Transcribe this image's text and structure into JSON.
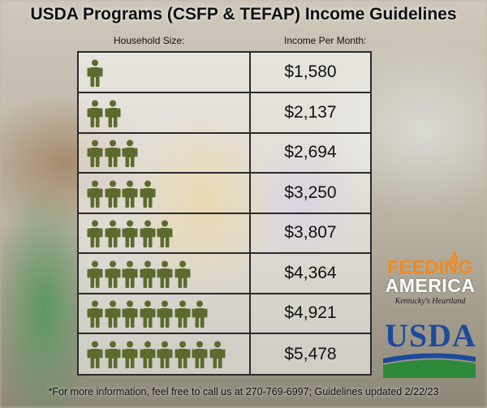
{
  "title": "USDA Programs (CSFP & TEFAP) Income Guidelines",
  "columns": {
    "household": "Household Size:",
    "income": "Income Per Month:"
  },
  "rows": [
    {
      "household_size": 1,
      "income": "$1,580"
    },
    {
      "household_size": 2,
      "income": "$2,137"
    },
    {
      "household_size": 3,
      "income": "$2,694"
    },
    {
      "household_size": 4,
      "income": "$3,250"
    },
    {
      "household_size": 5,
      "income": "$3,807"
    },
    {
      "household_size": 6,
      "income": "$4,364"
    },
    {
      "household_size": 7,
      "income": "$4,921"
    },
    {
      "household_size": 8,
      "income": "$5,478"
    }
  ],
  "logos": {
    "feeding_america": {
      "line1": "FEEDING",
      "line2": "AMERICA",
      "sub": "Kentucky's Heartland"
    },
    "usda": "USDA"
  },
  "footer": "*For more information, feel free to call us at 270-769-6997; Guidelines updated 2/22/23",
  "colors": {
    "figure": "#5d6a2e",
    "feeding_orange": "#f28a1e",
    "usda_blue": "#1c4a9c",
    "usda_green": "#2d8a3a"
  },
  "icons": {
    "person": "person-icon",
    "wheat": "wheat-icon"
  }
}
